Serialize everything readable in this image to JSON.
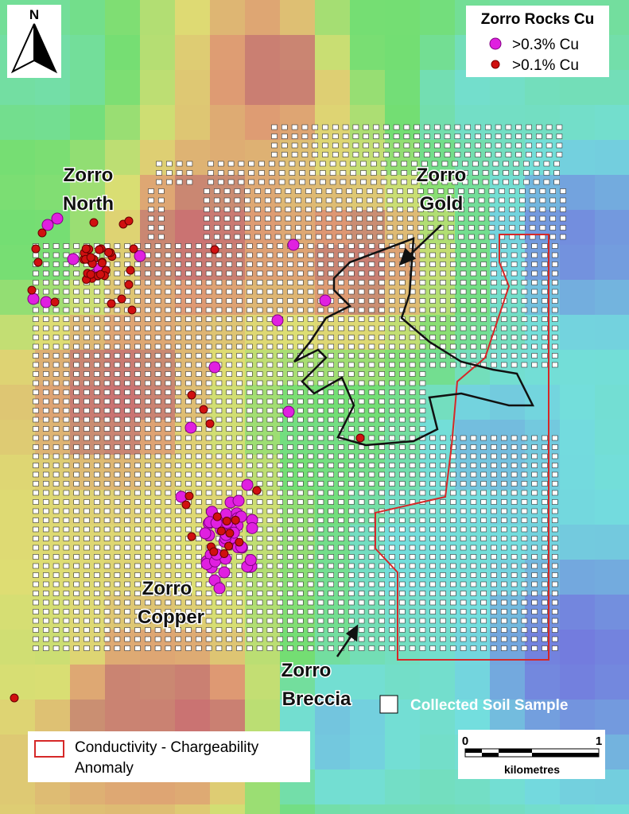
{
  "north": "N",
  "legend": {
    "title": "Zorro Rocks Cu",
    "items": [
      ">0.3% Cu",
      ">0.1% Cu"
    ]
  },
  "labels": [
    {
      "lines": [
        "Zorro",
        "North"
      ]
    },
    {
      "lines": [
        "Zorro",
        "Gold"
      ]
    },
    {
      "lines": [
        "Zorro",
        "Copper"
      ]
    },
    {
      "lines": [
        "Zorro",
        "Breccia"
      ]
    }
  ],
  "soil_legend": "Collected Soil Sample",
  "anomaly_legend": [
    "Conductivity - Chargeability",
    "Anomaly"
  ],
  "scale": {
    "start": "0",
    "end": "1",
    "unit": "kilometres"
  }
}
